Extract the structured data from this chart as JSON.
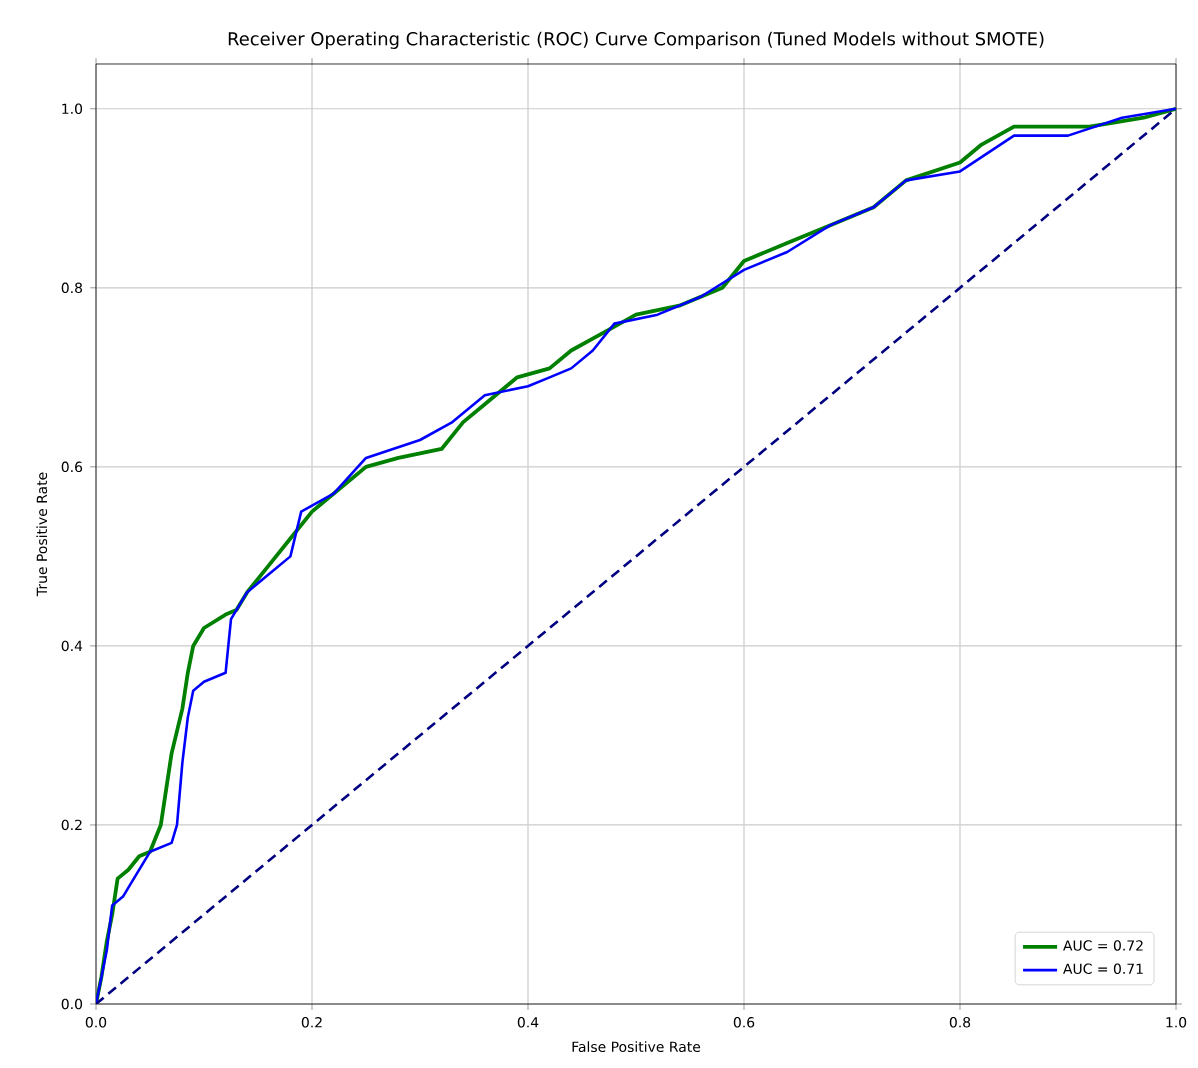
{
  "chart_data": {
    "type": "line",
    "title": "Receiver Operating Characteristic (ROC) Curve Comparison (Tuned Models without SMOTE)",
    "xlabel": "False Positive Rate",
    "ylabel": "True Positive Rate",
    "xlim": [
      0,
      1
    ],
    "ylim": [
      0,
      1.05
    ],
    "xticks": [
      {
        "value": 0,
        "label": "0.0"
      },
      {
        "value": 0.2,
        "label": "0.2"
      },
      {
        "value": 0.4,
        "label": "0.4"
      },
      {
        "value": 0.6,
        "label": "0.6"
      },
      {
        "value": 0.8,
        "label": "0.8"
      },
      {
        "value": 1,
        "label": "1.0"
      }
    ],
    "yticks": [
      {
        "value": 0,
        "label": "0.0"
      },
      {
        "value": 0.2,
        "label": "0.2"
      },
      {
        "value": 0.4,
        "label": "0.4"
      },
      {
        "value": 0.6,
        "label": "0.6"
      },
      {
        "value": 0.8,
        "label": "0.8"
      },
      {
        "value": 1,
        "label": "1.0"
      }
    ],
    "grid": true,
    "legend": "bottom right",
    "marker": "none",
    "series": [
      {
        "name": "AUC = 0.72",
        "color": "#008000",
        "line_style": "solid",
        "x": [
          0,
          0.005,
          0.01,
          0.015,
          0.02,
          0.03,
          0.04,
          0.05,
          0.06,
          0.065,
          0.07,
          0.08,
          0.085,
          0.09,
          0.1,
          0.12,
          0.13,
          0.14,
          0.16,
          0.18,
          0.2,
          0.23,
          0.25,
          0.28,
          0.32,
          0.34,
          0.36,
          0.39,
          0.42,
          0.44,
          0.47,
          0.5,
          0.54,
          0.58,
          0.6,
          0.64,
          0.68,
          0.72,
          0.75,
          0.8,
          0.82,
          0.85,
          0.92,
          0.97,
          1
        ],
        "values": [
          0,
          0.03,
          0.07,
          0.1,
          0.14,
          0.15,
          0.165,
          0.17,
          0.2,
          0.24,
          0.28,
          0.33,
          0.37,
          0.4,
          0.42,
          0.435,
          0.44,
          0.46,
          0.49,
          0.52,
          0.55,
          0.58,
          0.6,
          0.61,
          0.62,
          0.65,
          0.67,
          0.7,
          0.71,
          0.73,
          0.75,
          0.77,
          0.78,
          0.8,
          0.83,
          0.85,
          0.87,
          0.89,
          0.92,
          0.94,
          0.96,
          0.98,
          0.98,
          0.99,
          1
        ]
      },
      {
        "name": "AUC = 0.71",
        "color": "#0000ff",
        "line_style": "solid",
        "x": [
          0,
          0.005,
          0.01,
          0.015,
          0.025,
          0.035,
          0.05,
          0.07,
          0.075,
          0.08,
          0.085,
          0.09,
          0.1,
          0.12,
          0.125,
          0.14,
          0.16,
          0.18,
          0.19,
          0.22,
          0.25,
          0.3,
          0.33,
          0.36,
          0.4,
          0.42,
          0.44,
          0.46,
          0.48,
          0.52,
          0.56,
          0.6,
          0.64,
          0.68,
          0.72,
          0.75,
          0.8,
          0.85,
          0.9,
          0.95,
          1
        ],
        "values": [
          0,
          0.03,
          0.06,
          0.11,
          0.12,
          0.14,
          0.17,
          0.18,
          0.2,
          0.27,
          0.32,
          0.35,
          0.36,
          0.37,
          0.43,
          0.46,
          0.48,
          0.5,
          0.55,
          0.57,
          0.61,
          0.63,
          0.65,
          0.68,
          0.69,
          0.7,
          0.71,
          0.73,
          0.76,
          0.77,
          0.79,
          0.82,
          0.84,
          0.87,
          0.89,
          0.92,
          0.93,
          0.97,
          0.97,
          0.99,
          1
        ]
      },
      {
        "color": "#000080",
        "line_style": "dashed",
        "x": [
          0,
          1
        ],
        "values": [
          0,
          1
        ]
      }
    ]
  }
}
